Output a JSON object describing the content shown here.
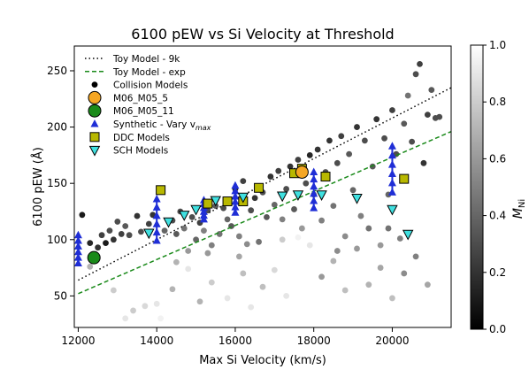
{
  "chart_data": {
    "type": "scatter",
    "title": "6100 pEW vs Si Velocity at Threshold",
    "xlabel": "Max Si Velocity (km/s)",
    "ylabel": "6100 pEW (Å)",
    "xlim": [
      11900,
      21500
    ],
    "ylim": [
      22,
      272
    ],
    "xticks": [
      "12000",
      "14000",
      "16000",
      "18000",
      "20000"
    ],
    "yticks": [
      "50",
      "100",
      "150",
      "200",
      "250"
    ],
    "grid": false,
    "legend_position": "top-left",
    "colorbar": {
      "label": "M_Ni",
      "label_main": "M",
      "label_sub": "Ni",
      "range": [
        0.0,
        1.0
      ],
      "ticks": [
        "0.0",
        "0.2",
        "0.4",
        "0.6",
        "0.8",
        "1.0"
      ],
      "colormap": "gray"
    },
    "legend": [
      {
        "label": "Toy Model - 9k",
        "marker": "dotted-line",
        "color": "#000000"
      },
      {
        "label": "Toy Model - exp",
        "marker": "dashed-line",
        "color": "#1a8a1a"
      },
      {
        "label": "Collision Models",
        "marker": "dot",
        "color": "#000000"
      },
      {
        "label": "M06_M05_5",
        "marker": "big-circle",
        "color": "#f5a623"
      },
      {
        "label": "M06_M05_11",
        "marker": "big-circle",
        "color": "#1a8a1a"
      },
      {
        "label": "Synthetic - Vary v",
        "label_sub": "max",
        "marker": "triangle-up",
        "color": "#1f2ed6"
      },
      {
        "label": "DDC Models",
        "marker": "square",
        "color": "#b8b800"
      },
      {
        "label": "SCH Models",
        "marker": "triangle-down",
        "color": "#40e0e0"
      }
    ],
    "series": [
      {
        "name": "Toy Model - 9k",
        "type": "line",
        "style": "dotted",
        "color": "#000000",
        "x": [
          12000,
          21500
        ],
        "y": [
          64,
          235
        ]
      },
      {
        "name": "Toy Model - exp",
        "type": "line",
        "style": "dashed",
        "color": "#1a8a1a",
        "x": [
          12000,
          21500
        ],
        "y": [
          52,
          196
        ]
      },
      {
        "name": "M06_M05_5",
        "type": "scatter",
        "color": "#f5a623",
        "points": [
          [
            17700,
            160
          ]
        ]
      },
      {
        "name": "M06_M05_11",
        "type": "scatter",
        "color": "#1a8a1a",
        "points": [
          [
            12400,
            84
          ]
        ]
      },
      {
        "name": "DDC Models",
        "type": "scatter",
        "color": "#b8b800",
        "points": [
          [
            14100,
            144
          ],
          [
            15300,
            132
          ],
          [
            15800,
            134
          ],
          [
            16200,
            134
          ],
          [
            16600,
            146
          ],
          [
            17500,
            159
          ],
          [
            17700,
            163
          ],
          [
            18300,
            156
          ],
          [
            20300,
            154
          ]
        ]
      },
      {
        "name": "SCH Models",
        "type": "scatter",
        "color": "#40e0e0",
        "points": [
          [
            13800,
            106
          ],
          [
            14300,
            116
          ],
          [
            14700,
            122
          ],
          [
            15000,
            127
          ],
          [
            15500,
            135
          ],
          [
            16200,
            138
          ],
          [
            17200,
            139
          ],
          [
            17600,
            140
          ],
          [
            18200,
            140
          ],
          [
            19100,
            137
          ],
          [
            20000,
            127
          ],
          [
            20400,
            105
          ]
        ]
      },
      {
        "name": "Synthetic - Vary v_max",
        "type": "vertical-bands",
        "color": "#1f2ed6",
        "bands": [
          {
            "x": 12000,
            "y_low": 79,
            "y_high": 104
          },
          {
            "x": 14000,
            "y_low": 99,
            "y_high": 136
          },
          {
            "x": 15200,
            "y_low": 118,
            "y_high": 135
          },
          {
            "x": 16000,
            "y_low": 124,
            "y_high": 148
          },
          {
            "x": 18000,
            "y_low": 128,
            "y_high": 160
          },
          {
            "x": 20000,
            "y_low": 142,
            "y_high": 183
          }
        ]
      },
      {
        "name": "Collision Models",
        "type": "scatter",
        "colored_by": "M_Ni",
        "points": [
          [
            12100,
            122,
            0.1
          ],
          [
            12300,
            97,
            0.15
          ],
          [
            12500,
            93,
            0.2
          ],
          [
            12600,
            104,
            0.25
          ],
          [
            12700,
            97,
            0.1
          ],
          [
            12800,
            108,
            0.3
          ],
          [
            12900,
            100,
            0.2
          ],
          [
            13000,
            116,
            0.3
          ],
          [
            13100,
            105,
            0.25
          ],
          [
            13200,
            112,
            0.35
          ],
          [
            13300,
            104,
            0.3
          ],
          [
            13500,
            121,
            0.2
          ],
          [
            13600,
            107,
            0.3
          ],
          [
            13800,
            114,
            0.25
          ],
          [
            13900,
            122,
            0.2
          ],
          [
            14000,
            43,
            0.9
          ],
          [
            14200,
            108,
            0.4
          ],
          [
            14400,
            117,
            0.3
          ],
          [
            14500,
            105,
            0.35
          ],
          [
            14600,
            125,
            0.3
          ],
          [
            14700,
            110,
            0.45
          ],
          [
            14800,
            90,
            0.6
          ],
          [
            14900,
            120,
            0.3
          ],
          [
            15000,
            100,
            0.4
          ],
          [
            15100,
            115,
            0.25
          ],
          [
            15200,
            108,
            0.5
          ],
          [
            15300,
            126,
            0.3
          ],
          [
            15400,
            95,
            0.5
          ],
          [
            15500,
            130,
            0.35
          ],
          [
            15600,
            105,
            0.45
          ],
          [
            15700,
            128,
            0.3
          ],
          [
            15800,
            118,
            0.4
          ],
          [
            15900,
            112,
            0.35
          ],
          [
            16000,
            145,
            0.15
          ],
          [
            16100,
            103,
            0.5
          ],
          [
            16200,
            152,
            0.25
          ],
          [
            16300,
            96,
            0.55
          ],
          [
            16400,
            126,
            0.3
          ],
          [
            16500,
            137,
            0.2
          ],
          [
            16600,
            98,
            0.45
          ],
          [
            16700,
            142,
            0.3
          ],
          [
            16800,
            120,
            0.35
          ],
          [
            16900,
            156,
            0.2
          ],
          [
            17000,
            131,
            0.4
          ],
          [
            17100,
            161,
            0.25
          ],
          [
            17200,
            118,
            0.5
          ],
          [
            17300,
            145,
            0.3
          ],
          [
            17400,
            165,
            0.2
          ],
          [
            17500,
            127,
            0.35
          ],
          [
            17600,
            171,
            0.25
          ],
          [
            17700,
            110,
            0.6
          ],
          [
            17800,
            150,
            0.3
          ],
          [
            17900,
            175,
            0.15
          ],
          [
            18000,
            140,
            0.4
          ],
          [
            18100,
            180,
            0.2
          ],
          [
            18200,
            117,
            0.5
          ],
          [
            18300,
            160,
            0.3
          ],
          [
            18400,
            188,
            0.2
          ],
          [
            18500,
            130,
            0.45
          ],
          [
            18600,
            168,
            0.3
          ],
          [
            18700,
            192,
            0.25
          ],
          [
            18800,
            103,
            0.55
          ],
          [
            18900,
            176,
            0.35
          ],
          [
            19000,
            144,
            0.4
          ],
          [
            19100,
            200,
            0.2
          ],
          [
            19200,
            121,
            0.5
          ],
          [
            19300,
            188,
            0.3
          ],
          [
            19400,
            110,
            0.45
          ],
          [
            19500,
            165,
            0.35
          ],
          [
            19600,
            207,
            0.2
          ],
          [
            19700,
            95,
            0.6
          ],
          [
            19800,
            190,
            0.3
          ],
          [
            19900,
            140,
            0.4
          ],
          [
            20000,
            215,
            0.25
          ],
          [
            20100,
            176,
            0.3
          ],
          [
            20200,
            101,
            0.5
          ],
          [
            20300,
            203,
            0.35
          ],
          [
            20400,
            228,
            0.45
          ],
          [
            20500,
            187,
            0.3
          ],
          [
            20600,
            247,
            0.3
          ],
          [
            20700,
            256,
            0.25
          ],
          [
            20800,
            168,
            0.2
          ],
          [
            20900,
            211,
            0.25
          ],
          [
            21000,
            233,
            0.35
          ],
          [
            21100,
            208,
            0.3
          ],
          [
            21200,
            209,
            0.3
          ],
          [
            12300,
            76,
            0.7
          ],
          [
            12900,
            55,
            0.8
          ],
          [
            13200,
            30,
            0.9
          ],
          [
            13400,
            37,
            0.8
          ],
          [
            13700,
            41,
            0.85
          ],
          [
            14100,
            30,
            0.95
          ],
          [
            14400,
            56,
            0.7
          ],
          [
            14800,
            74,
            0.9
          ],
          [
            15100,
            45,
            0.7
          ],
          [
            15400,
            62,
            0.8
          ],
          [
            15800,
            48,
            0.9
          ],
          [
            16100,
            85,
            0.65
          ],
          [
            16400,
            40,
            0.9
          ],
          [
            16700,
            58,
            0.75
          ],
          [
            17000,
            73,
            0.85
          ],
          [
            17300,
            50,
            0.9
          ],
          [
            17600,
            102,
            0.95
          ],
          [
            17900,
            95,
            0.9
          ],
          [
            18200,
            67,
            0.6
          ],
          [
            18500,
            81,
            0.7
          ],
          [
            18800,
            55,
            0.75
          ],
          [
            19100,
            92,
            0.6
          ],
          [
            19400,
            60,
            0.7
          ],
          [
            19700,
            75,
            0.65
          ],
          [
            20000,
            48,
            0.75
          ],
          [
            20300,
            70,
            0.55
          ],
          [
            20600,
            85,
            0.5
          ],
          [
            20900,
            60,
            0.65
          ],
          [
            14500,
            80,
            0.7
          ],
          [
            16200,
            70,
            0.75
          ],
          [
            17200,
            100,
            0.8
          ],
          [
            18600,
            90,
            0.55
          ],
          [
            19900,
            110,
            0.45
          ],
          [
            15300,
            88,
            0.6
          ]
        ]
      }
    ]
  }
}
